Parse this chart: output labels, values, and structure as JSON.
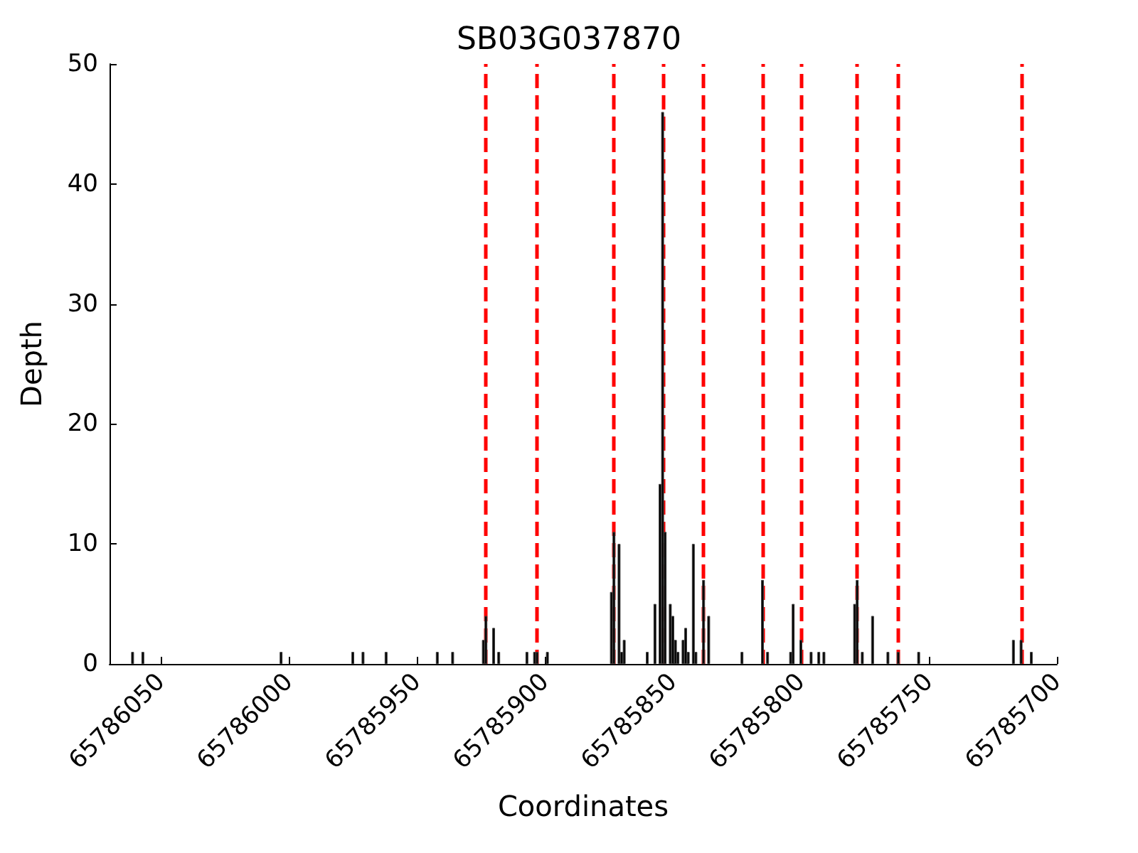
{
  "chart_data": {
    "type": "bar",
    "title": "SB03G037870",
    "xlabel": "Coordinates",
    "ylabel": "Depth",
    "x": [
      65786061,
      65786057,
      65786003,
      65785975,
      65785971,
      65785962,
      65785942,
      65785936,
      65785924,
      65785923,
      65785920,
      65785918,
      65785907,
      65785904,
      65785903,
      65785899,
      65785874,
      65785873,
      65785871,
      65785870,
      65785869,
      65785860,
      65785857,
      65785855,
      65785854,
      65785853,
      65785851,
      65785850,
      65785849,
      65785848,
      65785846,
      65785845,
      65785844,
      65785842,
      65785841,
      65785838,
      65785836,
      65785823,
      65785815,
      65785813,
      65785804,
      65785803,
      65785800,
      65785796,
      65785793,
      65785791,
      65785779,
      65785778,
      65785776,
      65785772,
      65785766,
      65785762,
      65785754,
      65785717,
      65785714,
      65785710
    ],
    "values": [
      1,
      1,
      1,
      1,
      1,
      1,
      1,
      1,
      2,
      4,
      3,
      1,
      1,
      1,
      1,
      1,
      6,
      11,
      10,
      1,
      2,
      1,
      5,
      15,
      46,
      11,
      5,
      4,
      2,
      1,
      2,
      3,
      1,
      10,
      1,
      7,
      4,
      1,
      7,
      1,
      1,
      5,
      2,
      1,
      1,
      1,
      5,
      7,
      1,
      4,
      1,
      1,
      1,
      2,
      2,
      1
    ],
    "color": "#000000",
    "xlim": [
      65786070,
      65785700
    ],
    "xticks": [
      65786050,
      65786000,
      65785950,
      65785900,
      65785850,
      65785800,
      65785750,
      65785700
    ],
    "ylim": [
      0,
      50
    ],
    "yticks": [
      0,
      10,
      20,
      30,
      40,
      50
    ],
    "grid": false,
    "ref_lines": [
      {
        "axis": "x",
        "value": 65785923,
        "color": "#ff0000",
        "line_style": "dashed"
      },
      {
        "axis": "x",
        "value": 65785903,
        "color": "#ff0000",
        "line_style": "dashed"
      },
      {
        "axis": "x",
        "value": 65785873,
        "color": "#ff0000",
        "line_style": "dashed"
      },
      {
        "axis": "x",
        "value": 65785854,
        "color": "#ff0000",
        "line_style": "dashed"
      },
      {
        "axis": "x",
        "value": 65785838,
        "color": "#ff0000",
        "line_style": "dashed"
      },
      {
        "axis": "x",
        "value": 65785815,
        "color": "#ff0000",
        "line_style": "dashed"
      },
      {
        "axis": "x",
        "value": 65785800,
        "color": "#ff0000",
        "line_style": "dashed"
      },
      {
        "axis": "x",
        "value": 65785778,
        "color": "#ff0000",
        "line_style": "dashed"
      },
      {
        "axis": "x",
        "value": 65785762,
        "color": "#ff0000",
        "line_style": "dashed"
      },
      {
        "axis": "x",
        "value": 65785714,
        "color": "#ff0000",
        "line_style": "dashed"
      }
    ]
  }
}
